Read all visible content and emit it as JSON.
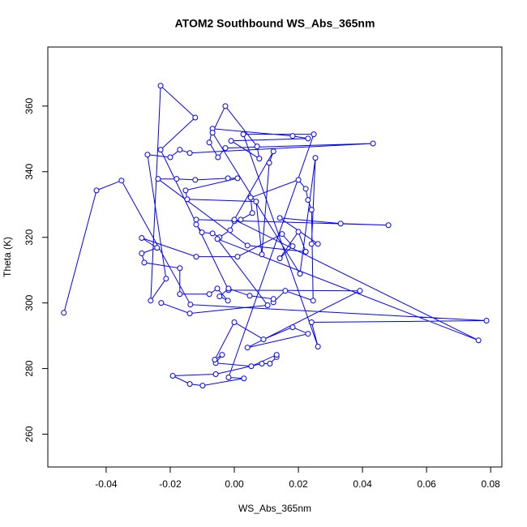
{
  "chart_data": {
    "type": "scatter",
    "title": "ATOM2 Southbound WS_Abs_365nm",
    "x_label": "WS_Abs_365nm",
    "y_label": "Theta (K)",
    "color": "#0000ff",
    "xlim": [
      -0.0582,
      0.0835
    ],
    "ylim": [
      250,
      378
    ],
    "xticks": [
      -0.04,
      -0.02,
      {
        "value": 0,
        "label": "0.00"
      },
      0.02,
      0.04,
      0.06,
      0.08
    ],
    "yticks": [
      260,
      280,
      300,
      320,
      340,
      360
    ],
    "x": [
      -0.0532,
      -0.043,
      -0.0352,
      -0.0137,
      0.0787,
      0.0241,
      0.0261,
      0.0028,
      0.0248,
      -0.0018,
      0.003,
      -0.0099,
      -0.0139,
      -0.0192,
      -0.0058,
      0.0086,
      0.0111,
      0.0132,
      0.0132,
      0.0053,
      -0.0058,
      -0.0038,
      -0.0061,
      0.0,
      0.0091,
      0.0182,
      0.023,
      0.0041,
      0.0392,
      -0.0018,
      -0.023,
      -0.0122,
      -0.023,
      -0.0261,
      -0.0213,
      -0.0271,
      -0.02,
      -0.017,
      -0.0139,
      0.0433,
      -0.0028,
      -0.0051,
      -0.0078,
      -0.0068,
      0.0182,
      0.023,
      -0.001,
      0.0078,
      0.0071,
      -0.0028,
      -0.0068,
      0.0205,
      0.0253,
      0.0241,
      0.0261,
      0.0142,
      0.0332,
      0.0481,
      -0.0119,
      -0.0119,
      -0.0101,
      -0.0068,
      -0.0046,
      -0.0013,
      0.0,
      0.002,
      0.0056,
      0.0051,
      0.02,
      0.0223,
      0.023,
      0.0241,
      0.0246,
      0.0159,
      0.0122,
      0.0122,
      0.0048,
      -0.0018,
      -0.0046,
      -0.002,
      -0.0053,
      -0.0078,
      -0.017,
      -0.017,
      -0.0281,
      -0.0289,
      -0.0241,
      -0.0289,
      -0.0119,
      0.001,
      0.0149,
      0.0182,
      0.0142,
      0.02,
      0.0223,
      0.0041,
      -0.0238,
      -0.018,
      -0.0122,
      -0.002,
      0.001,
      -0.0152,
      -0.0147,
      0.0068,
      0.0086,
      0.0109,
      0.0122,
      0.0,
      0.0762,
      -0.0053,
      0.0104,
      -0.0139,
      -0.0228
    ],
    "values": [
      297.0,
      334.3,
      337.3,
      299.5,
      294.6,
      294.1,
      286.7,
      351.4,
      351.4,
      277.3,
      277.0,
      274.8,
      275.3,
      277.8,
      278.3,
      281.5,
      281.5,
      283.5,
      284.2,
      280.7,
      281.7,
      284.2,
      282.7,
      294.1,
      288.9,
      292.6,
      290.6,
      286.4,
      303.7,
      303.9,
      346.7,
      356.5,
      366.2,
      300.7,
      307.4,
      345.2,
      344.4,
      346.7,
      345.7,
      348.6,
      347.2,
      344.4,
      348.9,
      353.1,
      350.9,
      350.1,
      349.4,
      344.0,
      347.7,
      360.0,
      351.9,
      308.9,
      344.2,
      318.0,
      318.0,
      325.9,
      324.2,
      323.7,
      325.4,
      323.9,
      321.5,
      321.2,
      320.0,
      322.2,
      324.9,
      325.4,
      327.4,
      332.1,
      337.5,
      334.8,
      331.4,
      328.4,
      300.7,
      303.7,
      300.2,
      301.2,
      302.2,
      304.4,
      302.0,
      300.7,
      304.4,
      302.7,
      302.7,
      310.6,
      312.3,
      315.1,
      316.8,
      319.8,
      314.1,
      314.1,
      321.0,
      317.3,
      313.6,
      321.7,
      315.6,
      317.5,
      337.8,
      337.8,
      337.5,
      338.0,
      338.0,
      334.3,
      331.6,
      330.9,
      314.8,
      342.7,
      346.2,
      325.4,
      288.6,
      319.5,
      299.3,
      296.8,
      300.0
    ]
  }
}
